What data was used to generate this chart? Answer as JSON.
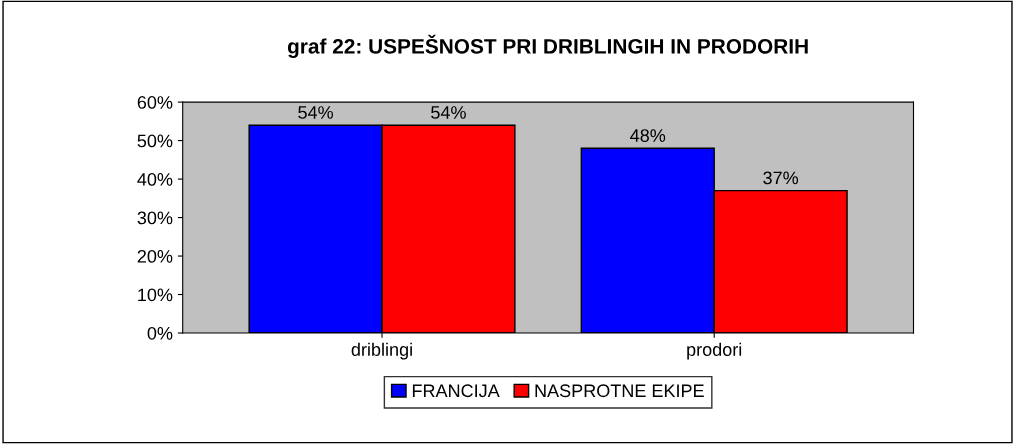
{
  "chart_data": {
    "type": "bar",
    "title": "graf 22: USPEŠNOST PRI DRIBLINGIH IN PRODORIH",
    "categories": [
      "driblingi",
      "prodori"
    ],
    "series": [
      {
        "name": "FRANCIJA",
        "color": "#0000ff",
        "values": [
          54,
          48
        ],
        "value_labels": [
          "54%",
          "48%"
        ]
      },
      {
        "name": "NASPROTNE EKIPE",
        "color": "#ff0000",
        "values": [
          54,
          37
        ],
        "value_labels": [
          "54%",
          "37%"
        ]
      }
    ],
    "ylim": [
      0,
      60
    ],
    "yticks": [
      {
        "value": 0,
        "label": "0%"
      },
      {
        "value": 10,
        "label": "10%"
      },
      {
        "value": 20,
        "label": "20%"
      },
      {
        "value": 30,
        "label": "30%"
      },
      {
        "value": 40,
        "label": "40%"
      },
      {
        "value": 50,
        "label": "50%"
      },
      {
        "value": 60,
        "label": "60%"
      }
    ],
    "grid": false,
    "legend": "bottom"
  }
}
